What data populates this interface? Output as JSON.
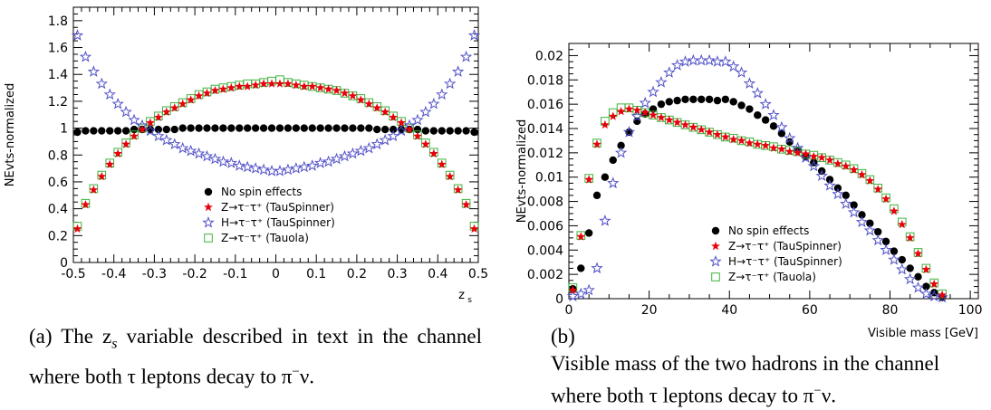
{
  "chart_data": [
    {
      "type": "scatter",
      "panel": "a",
      "ylabel": "NEvts-normalized",
      "xlabel": "z",
      "xlabel_sub": "s",
      "xlim": [
        -0.5,
        0.5
      ],
      "ylim": [
        0,
        1.9
      ],
      "grid": false,
      "legend_position": "bottom-center",
      "x_ticks": [
        "-0.5",
        "-0.4",
        "-0.3",
        "-0.2",
        "-0.1",
        "0",
        "0.1",
        "0.2",
        "0.3",
        "0.4",
        "0.5"
      ],
      "y_ticks": [
        "0",
        "0.2",
        "0.4",
        "0.6",
        "0.8",
        "1",
        "1.2",
        "1.4",
        "1.6",
        "1.8"
      ],
      "x": [
        -0.49,
        -0.47,
        -0.45,
        -0.43,
        -0.41,
        -0.39,
        -0.37,
        -0.35,
        -0.33,
        -0.31,
        -0.29,
        -0.27,
        -0.25,
        -0.23,
        -0.21,
        -0.19,
        -0.17,
        -0.15,
        -0.13,
        -0.11,
        -0.09,
        -0.07,
        -0.05,
        -0.03,
        -0.01,
        0.01,
        0.03,
        0.05,
        0.07,
        0.09,
        0.11,
        0.13,
        0.15,
        0.17,
        0.19,
        0.21,
        0.23,
        0.25,
        0.27,
        0.29,
        0.31,
        0.33,
        0.35,
        0.37,
        0.39,
        0.41,
        0.43,
        0.45,
        0.47,
        0.49
      ],
      "series": [
        {
          "name": "No spin effects",
          "marker": "circle",
          "color": "#000000",
          "values": [
            0.97,
            0.98,
            0.98,
            0.98,
            0.98,
            0.98,
            0.98,
            0.99,
            0.99,
            0.99,
            0.99,
            0.99,
            0.99,
            1.0,
            1.0,
            1.0,
            1.0,
            1.0,
            1.0,
            1.0,
            1.0,
            1.0,
            1.0,
            1.0,
            1.0,
            1.0,
            1.0,
            1.0,
            1.0,
            1.0,
            1.0,
            1.0,
            1.0,
            1.0,
            1.0,
            1.0,
            1.0,
            0.99,
            0.99,
            0.99,
            0.99,
            0.99,
            0.99,
            0.98,
            0.98,
            0.98,
            0.98,
            0.98,
            0.98,
            0.97
          ]
        },
        {
          "name": "Z→τ⁻τ⁺ (TauSpinner)",
          "marker": "star-filled",
          "color": "#e8000b",
          "values": [
            0.25,
            0.43,
            0.54,
            0.64,
            0.73,
            0.81,
            0.88,
            0.94,
            0.99,
            1.04,
            1.08,
            1.12,
            1.15,
            1.18,
            1.21,
            1.24,
            1.26,
            1.28,
            1.29,
            1.3,
            1.31,
            1.31,
            1.32,
            1.33,
            1.33,
            1.33,
            1.33,
            1.32,
            1.31,
            1.31,
            1.3,
            1.29,
            1.28,
            1.26,
            1.24,
            1.21,
            1.18,
            1.15,
            1.12,
            1.08,
            1.04,
            0.99,
            0.94,
            0.88,
            0.81,
            0.73,
            0.64,
            0.54,
            0.43,
            0.25
          ]
        },
        {
          "name": "H→τ⁻τ⁺ (TauSpinner)",
          "marker": "star-open",
          "color": "#5050c8",
          "values": [
            1.69,
            1.53,
            1.42,
            1.33,
            1.25,
            1.18,
            1.12,
            1.06,
            1.02,
            0.98,
            0.94,
            0.91,
            0.88,
            0.85,
            0.83,
            0.81,
            0.79,
            0.77,
            0.75,
            0.74,
            0.72,
            0.71,
            0.7,
            0.69,
            0.68,
            0.68,
            0.69,
            0.7,
            0.71,
            0.72,
            0.74,
            0.75,
            0.77,
            0.79,
            0.81,
            0.83,
            0.85,
            0.88,
            0.91,
            0.94,
            0.98,
            1.02,
            1.06,
            1.12,
            1.18,
            1.25,
            1.33,
            1.42,
            1.53,
            1.69
          ]
        },
        {
          "name": "Z→τ⁻τ⁺ (Tauola)",
          "marker": "square-open",
          "color": "#3cb43c",
          "values": [
            0.27,
            0.44,
            0.55,
            0.65,
            0.74,
            0.82,
            0.89,
            0.95,
            1.0,
            1.05,
            1.09,
            1.13,
            1.16,
            1.19,
            1.22,
            1.25,
            1.27,
            1.29,
            1.3,
            1.31,
            1.32,
            1.33,
            1.33,
            1.34,
            1.35,
            1.36,
            1.34,
            1.33,
            1.32,
            1.31,
            1.3,
            1.29,
            1.28,
            1.26,
            1.24,
            1.22,
            1.19,
            1.16,
            1.13,
            1.09,
            1.05,
            1.0,
            0.95,
            0.89,
            0.82,
            0.74,
            0.65,
            0.55,
            0.44,
            0.27
          ]
        }
      ]
    },
    {
      "type": "scatter",
      "panel": "b",
      "ylabel": "NEvts-normalized",
      "xlabel": "Visible mass [GeV]",
      "xlim": [
        0,
        102
      ],
      "ylim": [
        0,
        0.021
      ],
      "grid": false,
      "legend_position": "bottom-center",
      "x_ticks": [
        "0",
        "20",
        "40",
        "60",
        "80",
        "100"
      ],
      "y_ticks": [
        "0",
        "0.002",
        "0.004",
        "0.006",
        "0.008",
        "0.01",
        "0.012",
        "0.014",
        "0.016",
        "0.018",
        "0.02"
      ],
      "x": [
        1,
        3,
        5,
        7,
        9,
        11,
        13,
        15,
        17,
        19,
        21,
        23,
        25,
        27,
        29,
        31,
        33,
        35,
        37,
        39,
        41,
        43,
        45,
        47,
        49,
        51,
        53,
        55,
        57,
        59,
        61,
        63,
        65,
        67,
        69,
        71,
        73,
        75,
        77,
        79,
        81,
        83,
        85,
        87,
        89,
        91,
        93
      ],
      "series": [
        {
          "name": "No spin effects",
          "marker": "circle",
          "color": "#000000",
          "values": [
            0.0008,
            0.0025,
            0.0054,
            0.0085,
            0.01,
            0.0114,
            0.0126,
            0.0137,
            0.0146,
            0.0152,
            0.0156,
            0.016,
            0.0162,
            0.0163,
            0.0164,
            0.0164,
            0.0164,
            0.0164,
            0.0163,
            0.0164,
            0.0162,
            0.0159,
            0.0156,
            0.0151,
            0.0147,
            0.0142,
            0.0136,
            0.0129,
            0.0122,
            0.0117,
            0.0112,
            0.0105,
            0.0098,
            0.0091,
            0.0085,
            0.0077,
            0.0069,
            0.0062,
            0.0055,
            0.0047,
            0.0039,
            0.0032,
            0.0025,
            0.0018,
            0.001,
            0.0005,
            0.0001
          ]
        },
        {
          "name": "Z→τ⁻τ⁺ (TauSpinner)",
          "marker": "star-filled",
          "color": "#e8000b",
          "values": [
            0.0007,
            0.0051,
            0.0098,
            0.0127,
            0.0143,
            0.015,
            0.0154,
            0.0156,
            0.0155,
            0.0153,
            0.0151,
            0.0149,
            0.0147,
            0.0145,
            0.0143,
            0.0141,
            0.0139,
            0.0137,
            0.0135,
            0.0133,
            0.0131,
            0.013,
            0.0128,
            0.0127,
            0.0126,
            0.0124,
            0.0123,
            0.0121,
            0.012,
            0.0119,
            0.0117,
            0.0116,
            0.0114,
            0.0111,
            0.0109,
            0.0106,
            0.0102,
            0.0097,
            0.009,
            0.0082,
            0.0072,
            0.0061,
            0.005,
            0.0037,
            0.0024,
            0.0012,
            0.0003
          ]
        },
        {
          "name": "H→τ⁻τ⁺ (TauSpinner)",
          "marker": "star-open",
          "color": "#5050c8",
          "values": [
            0.0002,
            0.0004,
            0.0007,
            0.0025,
            0.0064,
            0.0095,
            0.012,
            0.0137,
            0.015,
            0.0161,
            0.017,
            0.0178,
            0.0186,
            0.0192,
            0.0195,
            0.0196,
            0.0196,
            0.0196,
            0.0195,
            0.0195,
            0.0191,
            0.0186,
            0.0177,
            0.0169,
            0.016,
            0.0151,
            0.0141,
            0.0132,
            0.0124,
            0.0116,
            0.0109,
            0.0101,
            0.0093,
            0.0086,
            0.0078,
            0.0071,
            0.0063,
            0.0056,
            0.0048,
            0.004,
            0.0032,
            0.0024,
            0.0016,
            0.0009,
            0.0004,
            0.0002,
            0.0001
          ]
        },
        {
          "name": "Z→τ⁻τ⁺ (Tauola)",
          "marker": "square-open",
          "color": "#3cb43c",
          "values": [
            0.0009,
            0.0052,
            0.0099,
            0.0128,
            0.0146,
            0.0153,
            0.0157,
            0.0157,
            0.0155,
            0.0153,
            0.0151,
            0.0149,
            0.0147,
            0.0145,
            0.0143,
            0.0141,
            0.0139,
            0.0137,
            0.0135,
            0.0133,
            0.0132,
            0.013,
            0.0129,
            0.0127,
            0.0126,
            0.0125,
            0.0123,
            0.0122,
            0.0121,
            0.0119,
            0.0118,
            0.0116,
            0.0114,
            0.0112,
            0.011,
            0.0107,
            0.0103,
            0.0098,
            0.0091,
            0.0083,
            0.0074,
            0.0063,
            0.0051,
            0.0038,
            0.0025,
            0.0013,
            0.0004
          ]
        }
      ]
    }
  ],
  "captions": {
    "a_lines": [
      "(a) The z",
      "s",
      " variable described in text in the channel where both τ leptons decay to π",
      "−",
      "ν."
    ],
    "a_label": "(a)",
    "a_text": "The z",
    "a_sub": "s",
    "a_rest": " variable described in text in the channel where both τ leptons decay to π",
    "a_sup": "−",
    "a_end": "ν.",
    "b_label": "(b)",
    "b_text": "Visible mass of the two hadrons in the channel where both τ leptons decay to π",
    "b_sup": "−",
    "b_end": "ν."
  }
}
